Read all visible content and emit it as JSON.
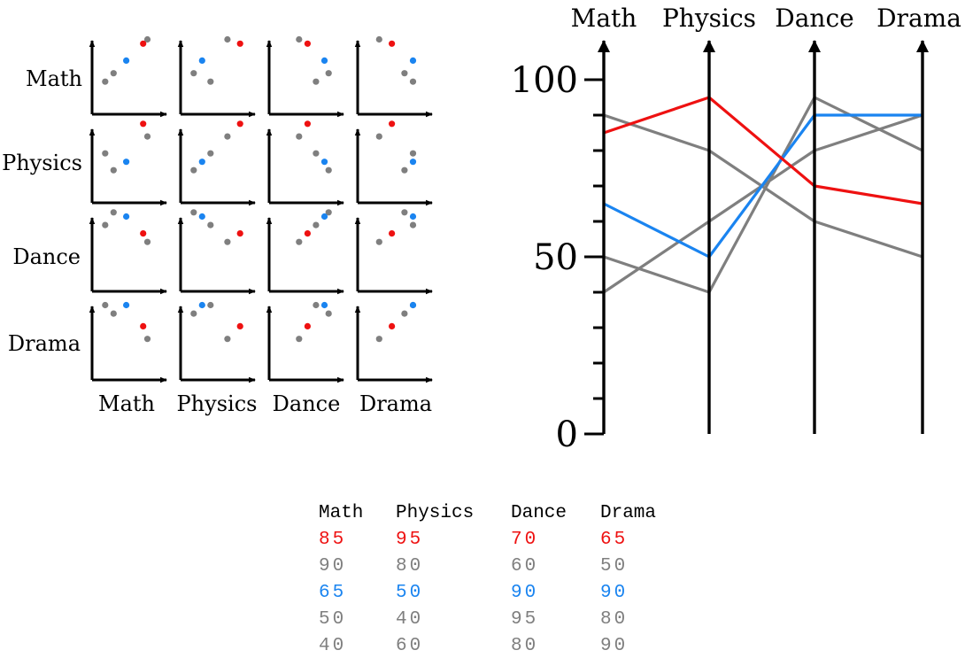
{
  "variables": [
    "Math",
    "Physics",
    "Dance",
    "Drama"
  ],
  "colors": {
    "highlight_red": "#ee1111",
    "highlight_blue": "#1a84f0",
    "neutral": "#7f7f7f",
    "axis": "#000000"
  },
  "scatter_matrix": {
    "row_labels": [
      "Math",
      "Physics",
      "Dance",
      "Drama"
    ],
    "col_labels": [
      "Math",
      "Physics",
      "Dance",
      "Drama"
    ]
  },
  "parallel_coords": {
    "axis_titles": [
      "Math",
      "Physics",
      "Dance",
      "Drama"
    ],
    "y_ticks_labeled": [
      "0",
      "50",
      "100"
    ]
  },
  "table": {
    "headers": [
      "Math",
      "Physics",
      "Dance",
      "Drama"
    ],
    "rows": [
      [
        "85",
        "95",
        "70",
        "65"
      ],
      [
        "90",
        "80",
        "60",
        "50"
      ],
      [
        "65",
        "50",
        "90",
        "90"
      ],
      [
        "50",
        "40",
        "95",
        "80"
      ],
      [
        "40",
        "60",
        "80",
        "90"
      ]
    ],
    "row_colors": [
      "highlight_red",
      "neutral",
      "highlight_blue",
      "neutral",
      "neutral"
    ]
  },
  "chart_data": [
    {
      "type": "scatter",
      "variables": [
        "Math",
        "Physics",
        "Dance",
        "Drama"
      ],
      "records": [
        {
          "color": "highlight_red",
          "values": [
            85,
            95,
            70,
            65
          ]
        },
        {
          "color": "neutral",
          "values": [
            90,
            80,
            60,
            50
          ]
        },
        {
          "color": "highlight_blue",
          "values": [
            65,
            50,
            90,
            90
          ]
        },
        {
          "color": "neutral",
          "values": [
            50,
            40,
            95,
            80
          ]
        },
        {
          "color": "neutral",
          "values": [
            40,
            60,
            80,
            90
          ]
        }
      ]
    },
    {
      "type": "line",
      "x": [
        "Math",
        "Physics",
        "Dance",
        "Drama"
      ],
      "ylim": [
        0,
        100
      ],
      "y_ticks": [
        0,
        10,
        20,
        30,
        40,
        50,
        60,
        70,
        80,
        90,
        100
      ],
      "series": [
        {
          "color": "highlight_red",
          "values": [
            85,
            95,
            70,
            65
          ]
        },
        {
          "color": "neutral",
          "values": [
            90,
            80,
            60,
            50
          ]
        },
        {
          "color": "highlight_blue",
          "values": [
            65,
            50,
            90,
            90
          ]
        },
        {
          "color": "neutral",
          "values": [
            50,
            40,
            95,
            80
          ]
        },
        {
          "color": "neutral",
          "values": [
            40,
            60,
            80,
            90
          ]
        }
      ]
    }
  ]
}
